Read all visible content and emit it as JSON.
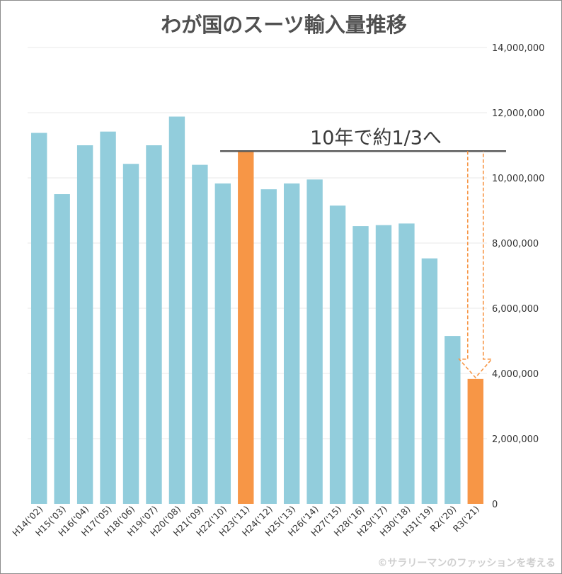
{
  "chart_data": {
    "type": "bar",
    "title": "わが国のスーツ輸入量推移",
    "xlabel": "",
    "ylabel": "",
    "ylim": [
      0,
      14000000
    ],
    "yticks": [
      0,
      2000000,
      4000000,
      6000000,
      8000000,
      10000000,
      12000000,
      14000000
    ],
    "ytick_labels": [
      "0",
      "2,000,000",
      "4,000,000",
      "6,000,000",
      "8,000,000",
      "10,000,000",
      "12,000,000",
      "14,000,000"
    ],
    "y_axis_side": "right",
    "grid": true,
    "categories": [
      "H14('02)",
      "H15('03)",
      "H16('04)",
      "H17('05)",
      "H18('06)",
      "H19('07)",
      "H20('08)",
      "H21('09)",
      "H22('10)",
      "H23('11)",
      "H24('12)",
      "H25('13)",
      "H26('14)",
      "H27('15)",
      "H28('16)",
      "H29('17)",
      "H30('18)",
      "H31('19)",
      "R2('20)",
      "R3('21)"
    ],
    "values": [
      11380000,
      9500000,
      11000000,
      11420000,
      10430000,
      11000000,
      11880000,
      10400000,
      9830000,
      10820000,
      9650000,
      9830000,
      9950000,
      9150000,
      8520000,
      8550000,
      8600000,
      7530000,
      5150000,
      3830000
    ],
    "highlight": [
      "H23('11)",
      "R3('21)"
    ],
    "annotation": {
      "text": "10年で約1/3へ",
      "reference_value": 10820000,
      "from_category": "H23('11)",
      "arrow_to_category": "R3('21)"
    },
    "credit": "©サラリーマンのファッションを考える"
  },
  "colors": {
    "bar": "#92cddc",
    "highlight": "#f79646",
    "grid": "#e8e8e8",
    "annotation_line": "#595959",
    "arrow": "#f79646"
  }
}
